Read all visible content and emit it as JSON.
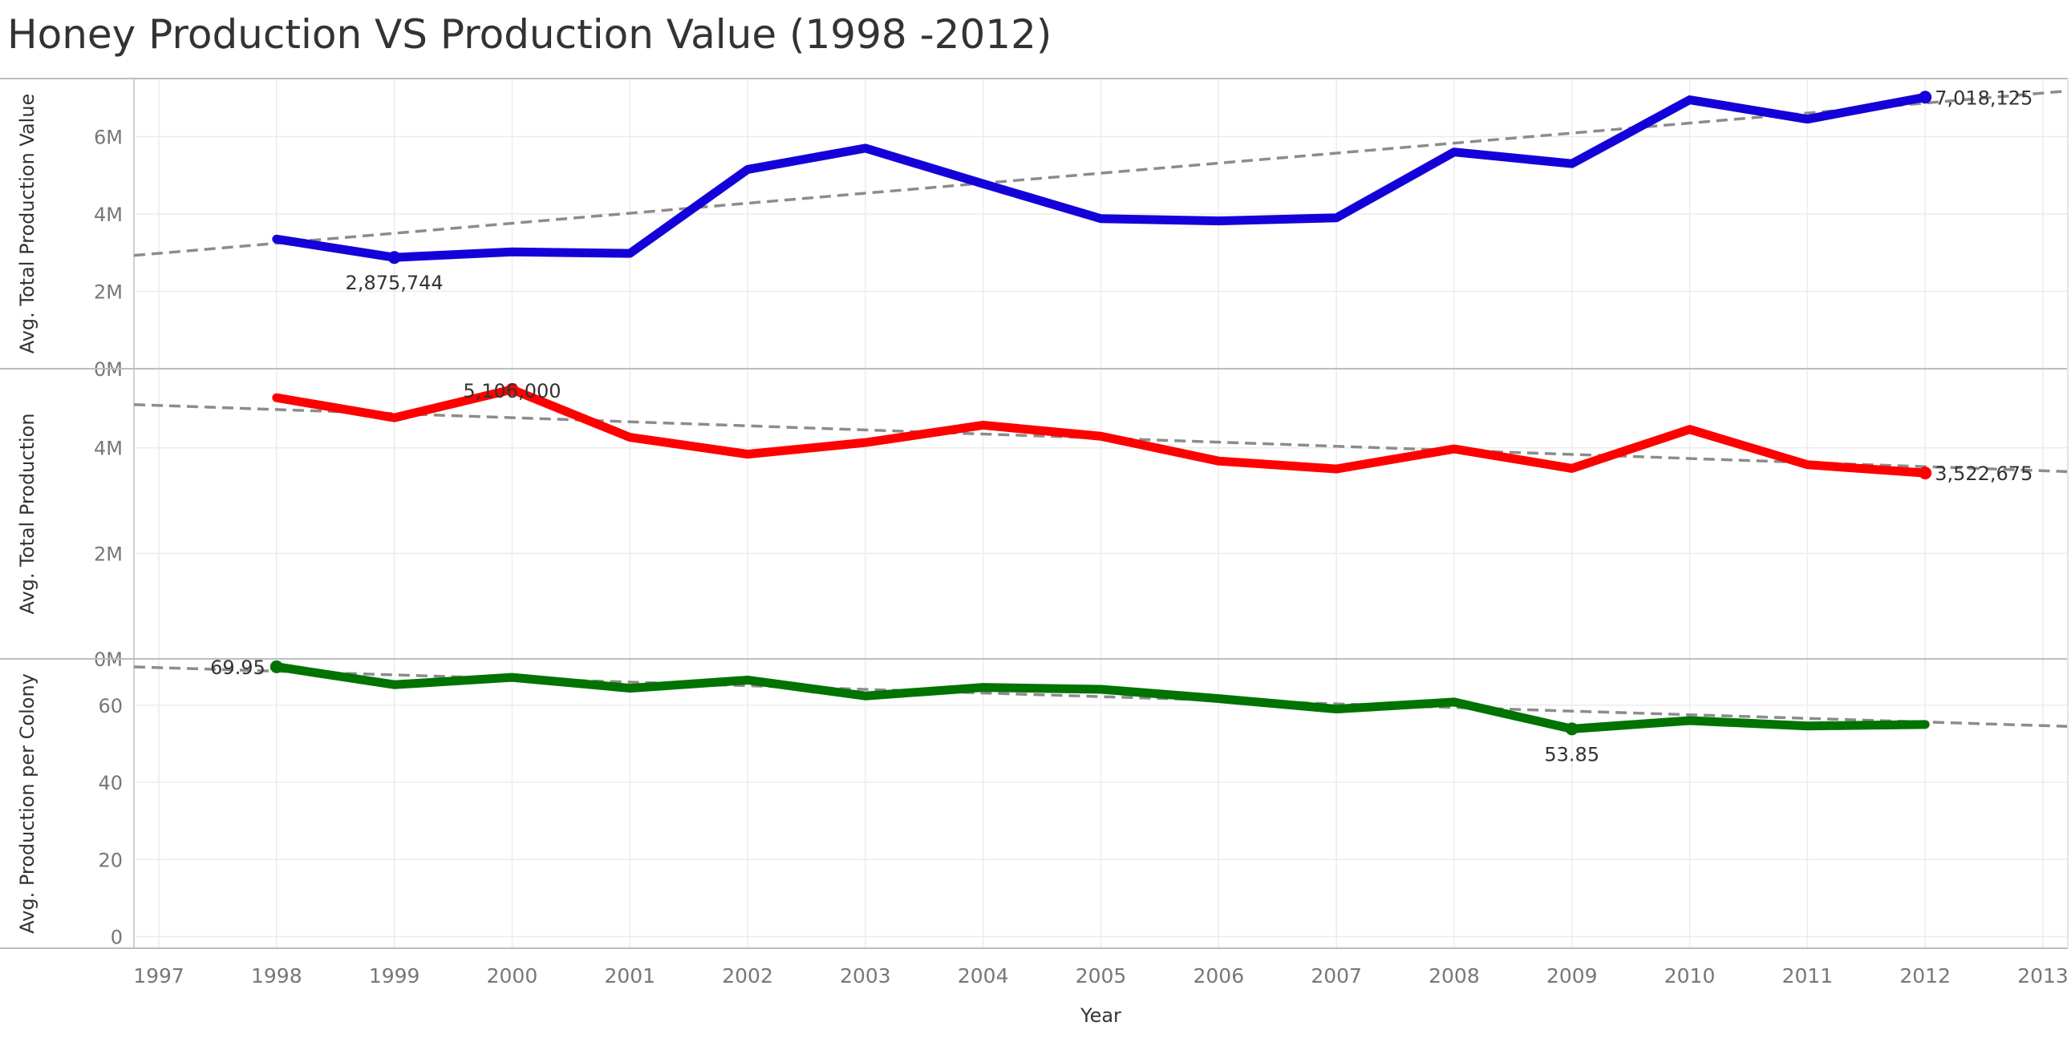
{
  "title": "Honey Production VS Production Value (1998 -2012)",
  "chart_data": {
    "type": "line",
    "title": "Honey Production VS Production Value (1998 -2012)",
    "xlabel": "Year",
    "x": [
      1998,
      1999,
      2000,
      2001,
      2002,
      2003,
      2004,
      2005,
      2006,
      2007,
      2008,
      2009,
      2010,
      2011,
      2012
    ],
    "x_ticks": [
      "1997",
      "1998",
      "1999",
      "2000",
      "2001",
      "2002",
      "2003",
      "2004",
      "2005",
      "2006",
      "2007",
      "2008",
      "2009",
      "2010",
      "2011",
      "2012",
      "2013"
    ],
    "xlim": [
      1997,
      2013
    ],
    "grid": true,
    "panels": [
      {
        "name": "value",
        "ylabel": "Avg. Total Production Value",
        "ylim": [
          0,
          7500000
        ],
        "y_ticks": [
          {
            "v": 0,
            "label": "0M"
          },
          {
            "v": 2000000,
            "label": "2M"
          },
          {
            "v": 4000000,
            "label": "4M"
          },
          {
            "v": 6000000,
            "label": "6M"
          }
        ],
        "color": "#1400d8",
        "values": [
          3350000,
          2875744,
          3020000,
          2980000,
          5150000,
          5700000,
          4780000,
          3880000,
          3820000,
          3900000,
          5600000,
          5300000,
          6950000,
          6450000,
          7018125
        ],
        "trend": [
          2928000,
          7180000
        ],
        "markers": [
          {
            "x": 1999,
            "y": 2875744,
            "label": "2,875,744",
            "pos": "below"
          },
          {
            "x": 2012,
            "y": 7018125,
            "label": "7,018,125",
            "pos": "right"
          }
        ]
      },
      {
        "name": "production",
        "ylabel": "Avg. Total Production",
        "ylim": [
          0,
          5500000
        ],
        "y_ticks": [
          {
            "v": 0,
            "label": "0M"
          },
          {
            "v": 2000000,
            "label": "2M"
          },
          {
            "v": 4000000,
            "label": "4M"
          }
        ],
        "color": "#ff0000",
        "values": [
          4950000,
          4570000,
          5106000,
          4200000,
          3880000,
          4100000,
          4430000,
          4220000,
          3750000,
          3600000,
          3980000,
          3610000,
          4350000,
          3680000,
          3522675
        ],
        "trend": [
          4820000,
          3550000
        ],
        "markers": [
          {
            "x": 2000,
            "y": 5106000,
            "label": "5,106,000",
            "pos": "above"
          },
          {
            "x": 2012,
            "y": 3522675,
            "label": "3,522,675",
            "pos": "right"
          }
        ]
      },
      {
        "name": "per-colony",
        "ylabel": "Avg. Production per Colony",
        "ylim": [
          -3,
          72
        ],
        "y_ticks": [
          {
            "v": 0,
            "label": "0"
          },
          {
            "v": 20,
            "label": "20"
          },
          {
            "v": 40,
            "label": "40"
          },
          {
            "v": 60,
            "label": "60"
          }
        ],
        "color": "#007300",
        "values": [
          69.95,
          65.3,
          67.2,
          64.4,
          66.5,
          62.4,
          64.6,
          64.1,
          61.7,
          59.0,
          60.8,
          53.85,
          56.0,
          54.6,
          55.0
        ],
        "trend": [
          69.93,
          54.5
        ],
        "markers": [
          {
            "x": 1998,
            "y": 69.95,
            "label": "69.95",
            "pos": "left"
          },
          {
            "x": 2009,
            "y": 53.85,
            "label": "53.85",
            "pos": "below"
          }
        ]
      }
    ]
  }
}
